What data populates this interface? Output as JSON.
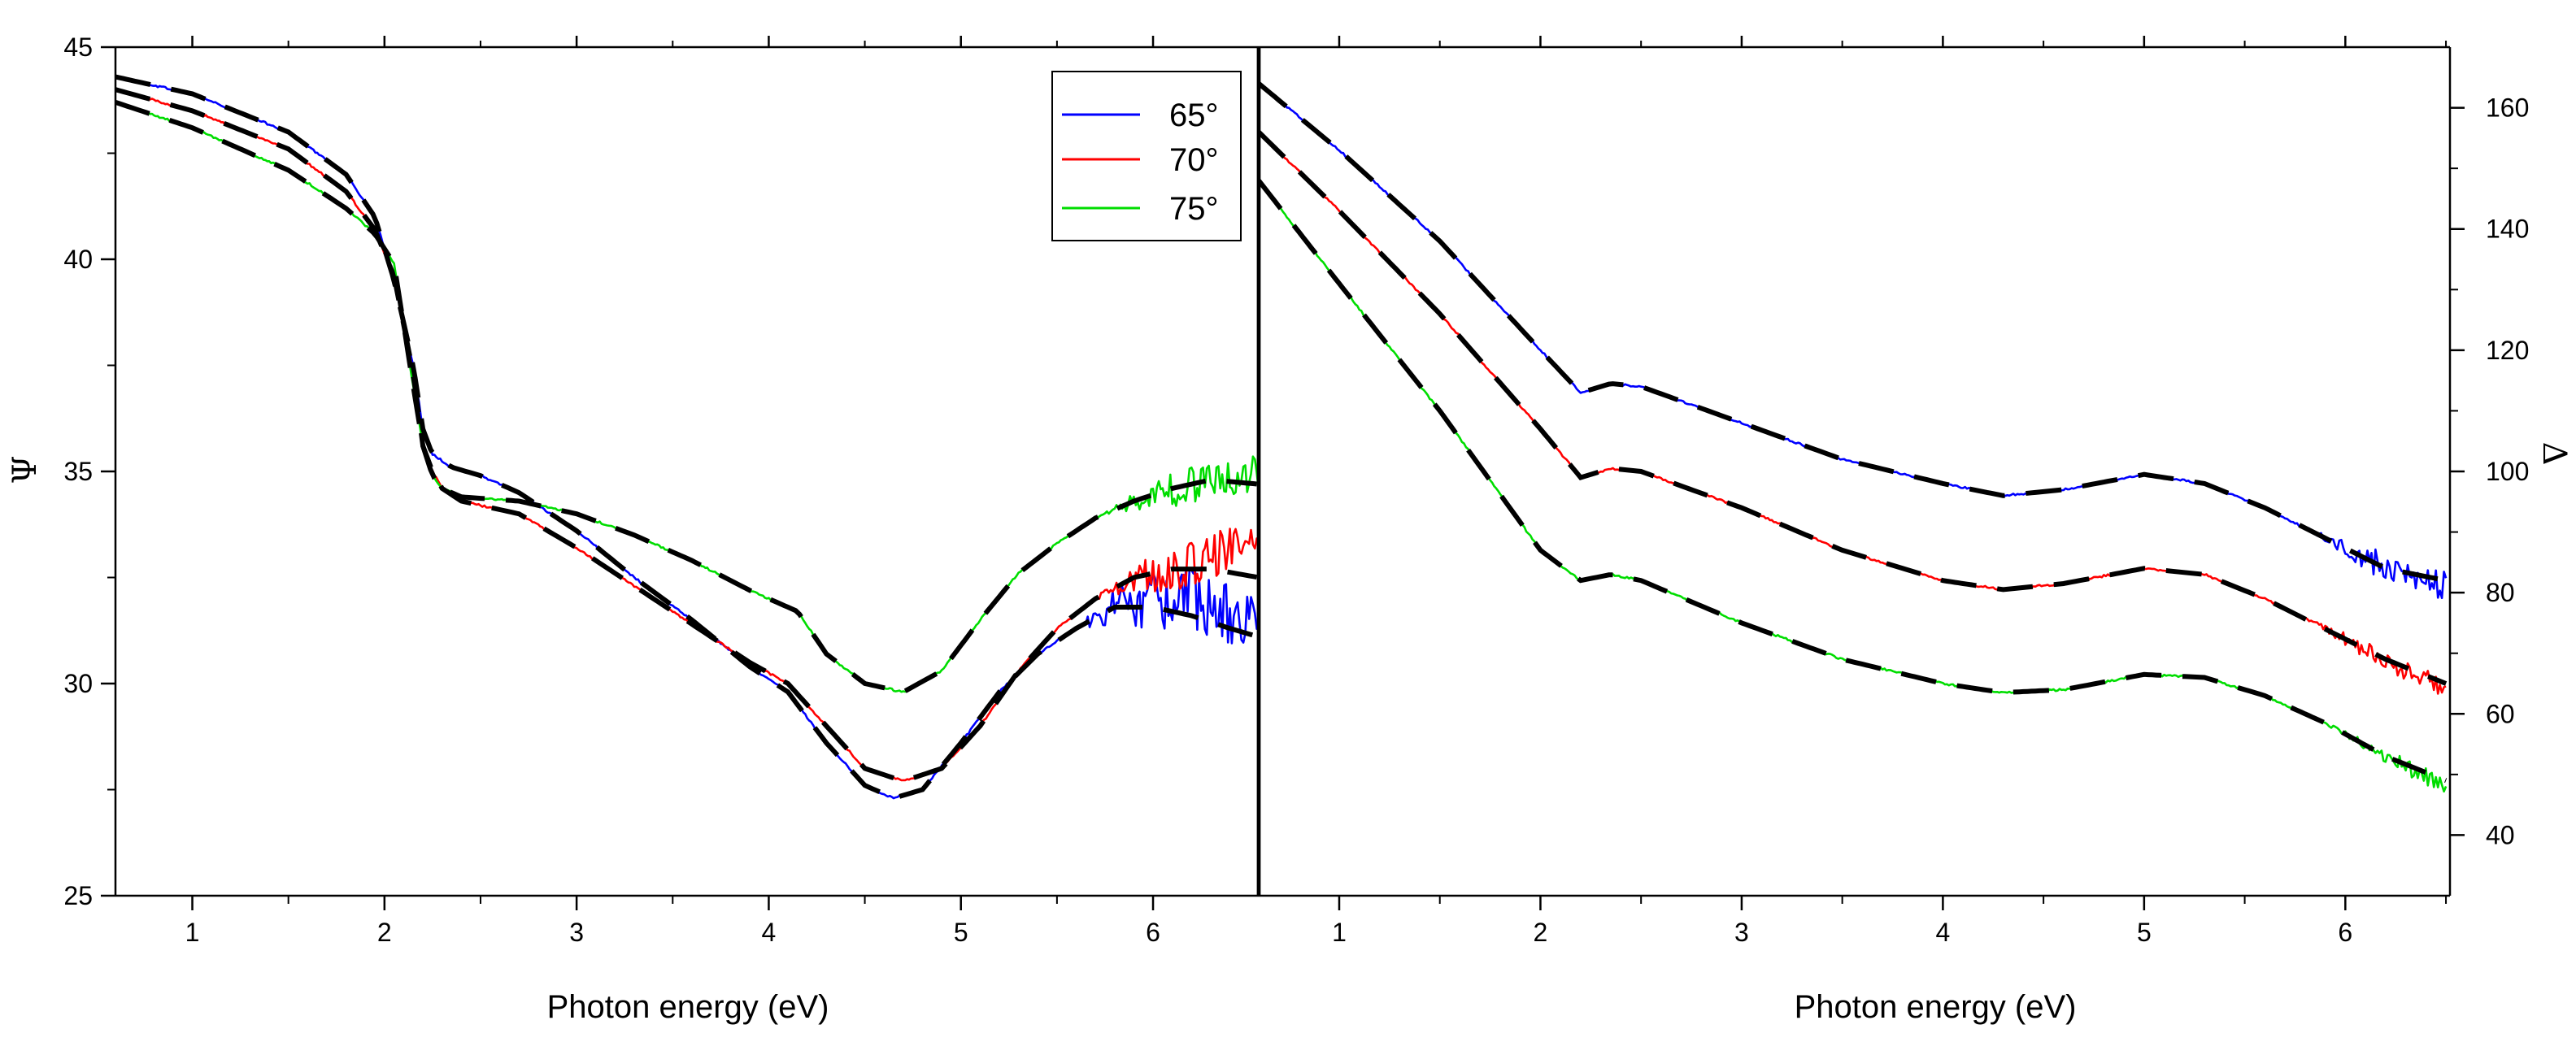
{
  "chart_data": [
    {
      "type": "line",
      "panel": "left",
      "xlabel": "Photon energy (eV)",
      "ylabel": "Ψ",
      "xlim": [
        0.6,
        6.55
      ],
      "ylim": [
        25,
        45
      ],
      "xticks": [
        "1",
        "2",
        "3",
        "4",
        "5",
        "6"
      ],
      "yticks": [
        "25",
        "30",
        "35",
        "40",
        "45"
      ],
      "legend": {
        "position": "top-right",
        "entries": [
          {
            "label": "65°",
            "color": "#0000ff"
          },
          {
            "label": "70°",
            "color": "#ff0000"
          },
          {
            "label": "75°",
            "color": "#00dd00"
          }
        ]
      },
      "series": [
        {
          "name": "65°",
          "color": "#0000ff",
          "style": "measured",
          "noise": 0.7,
          "noise_from": 5.6,
          "x": [
            0.6,
            1.0,
            1.5,
            1.8,
            1.95,
            2.05,
            2.15,
            2.2,
            2.25,
            2.35,
            2.5,
            2.7,
            3.0,
            3.3,
            3.6,
            3.9,
            4.1,
            4.3,
            4.5,
            4.65,
            4.8,
            5.0,
            5.2,
            5.4,
            5.6,
            5.8,
            6.0,
            6.2,
            6.4,
            6.55
          ],
          "y": [
            44.3,
            43.9,
            43.0,
            42.0,
            41.0,
            39.5,
            37.5,
            36.0,
            35.4,
            35.1,
            34.9,
            34.5,
            33.6,
            32.5,
            31.5,
            30.4,
            29.8,
            28.6,
            27.6,
            27.3,
            27.5,
            28.6,
            29.8,
            30.7,
            31.3,
            31.8,
            32.0,
            32.0,
            31.6,
            31.4
          ]
        },
        {
          "name": "70°",
          "color": "#ff0000",
          "style": "measured",
          "noise": 0.5,
          "noise_from": 5.7,
          "x": [
            0.6,
            1.0,
            1.5,
            1.8,
            1.95,
            2.05,
            2.15,
            2.2,
            2.25,
            2.3,
            2.4,
            2.7,
            3.0,
            3.3,
            3.6,
            3.9,
            4.1,
            4.3,
            4.5,
            4.7,
            4.9,
            5.1,
            5.3,
            5.5,
            5.7,
            5.9,
            6.1,
            6.3,
            6.55
          ],
          "y": [
            44.0,
            43.5,
            42.6,
            41.6,
            40.7,
            39.6,
            37.3,
            35.6,
            35.0,
            34.6,
            34.3,
            34.0,
            33.2,
            32.3,
            31.4,
            30.5,
            30.0,
            29.0,
            28.0,
            27.7,
            28.0,
            29.0,
            30.3,
            31.3,
            32.0,
            32.5,
            32.7,
            33.0,
            33.5
          ]
        },
        {
          "name": "75°",
          "color": "#00dd00",
          "style": "measured",
          "noise": 0.45,
          "noise_from": 5.75,
          "x": [
            0.6,
            1.0,
            1.5,
            1.8,
            1.95,
            2.05,
            2.15,
            2.2,
            2.25,
            2.3,
            2.4,
            2.7,
            3.0,
            3.3,
            3.6,
            3.9,
            4.15,
            4.3,
            4.5,
            4.7,
            4.9,
            5.1,
            5.3,
            5.5,
            5.7,
            5.9,
            6.1,
            6.3,
            6.55
          ],
          "y": [
            43.7,
            43.1,
            42.1,
            41.2,
            40.6,
            39.9,
            37.0,
            35.6,
            34.9,
            34.6,
            34.4,
            34.3,
            34.0,
            33.5,
            32.9,
            32.2,
            31.7,
            30.7,
            30.0,
            29.8,
            30.3,
            31.5,
            32.6,
            33.3,
            33.9,
            34.3,
            34.6,
            34.8,
            35.0
          ]
        },
        {
          "name": "fit 65°",
          "color": "#000000",
          "style": "fit",
          "x": [
            0.6,
            1.0,
            1.5,
            1.8,
            1.95,
            2.05,
            2.15,
            2.2,
            2.25,
            2.35,
            2.5,
            2.7,
            3.0,
            3.3,
            3.6,
            3.9,
            4.1,
            4.3,
            4.5,
            4.65,
            4.8,
            5.0,
            5.2,
            5.4,
            5.6,
            5.8,
            6.0,
            6.2,
            6.4,
            6.55
          ],
          "y": [
            44.3,
            43.9,
            43.0,
            42.0,
            41.0,
            39.5,
            37.5,
            36.0,
            35.4,
            35.1,
            34.9,
            34.5,
            33.6,
            32.5,
            31.5,
            30.4,
            29.8,
            28.6,
            27.6,
            27.3,
            27.5,
            28.6,
            29.8,
            30.7,
            31.3,
            31.8,
            31.8,
            31.6,
            31.3,
            31.1
          ]
        },
        {
          "name": "fit 70°",
          "color": "#000000",
          "style": "fit",
          "x": [
            0.6,
            1.0,
            1.5,
            1.8,
            1.95,
            2.05,
            2.15,
            2.2,
            2.25,
            2.3,
            2.4,
            2.7,
            3.0,
            3.3,
            3.6,
            3.9,
            4.1,
            4.3,
            4.5,
            4.7,
            4.9,
            5.1,
            5.3,
            5.5,
            5.7,
            5.9,
            6.1,
            6.3,
            6.55
          ],
          "y": [
            44.0,
            43.5,
            42.6,
            41.6,
            40.7,
            39.6,
            37.3,
            35.6,
            35.0,
            34.6,
            34.3,
            34.0,
            33.2,
            32.3,
            31.4,
            30.5,
            30.0,
            29.0,
            28.0,
            27.7,
            28.0,
            29.0,
            30.3,
            31.3,
            32.0,
            32.5,
            32.7,
            32.7,
            32.5
          ]
        },
        {
          "name": "fit 75°",
          "color": "#000000",
          "style": "fit",
          "x": [
            0.6,
            1.0,
            1.5,
            1.8,
            1.95,
            2.05,
            2.15,
            2.2,
            2.25,
            2.3,
            2.4,
            2.7,
            3.0,
            3.3,
            3.6,
            3.9,
            4.15,
            4.3,
            4.5,
            4.7,
            4.9,
            5.1,
            5.3,
            5.5,
            5.7,
            5.9,
            6.1,
            6.3,
            6.55
          ],
          "y": [
            43.7,
            43.1,
            42.1,
            41.2,
            40.6,
            39.9,
            37.0,
            35.6,
            34.9,
            34.6,
            34.4,
            34.3,
            34.0,
            33.5,
            32.9,
            32.2,
            31.7,
            30.7,
            30.0,
            29.8,
            30.3,
            31.5,
            32.6,
            33.3,
            33.9,
            34.3,
            34.6,
            34.8,
            34.7
          ]
        }
      ]
    },
    {
      "type": "line",
      "panel": "right",
      "xlabel": "Photon energy (eV)",
      "ylabel": "Δ",
      "xlim": [
        0.6,
        6.52
      ],
      "ylim": [
        30,
        170
      ],
      "xticks": [
        "1",
        "2",
        "3",
        "4",
        "5",
        "6"
      ],
      "yticks": [
        "40",
        "60",
        "80",
        "100",
        "120",
        "140",
        "160"
      ],
      "series": [
        {
          "name": "65°",
          "color": "#0000ff",
          "style": "measured",
          "noise": 2.2,
          "noise_from": 5.8,
          "x": [
            0.6,
            1.0,
            1.5,
            2.0,
            2.2,
            2.35,
            2.5,
            3.0,
            3.5,
            4.0,
            4.3,
            4.6,
            5.0,
            5.3,
            5.6,
            5.9,
            6.2,
            6.5
          ],
          "y": [
            164,
            153,
            138,
            120,
            113,
            114.5,
            114,
            108,
            102,
            98,
            96,
            97,
            99.5,
            98,
            94,
            89,
            84,
            81
          ]
        },
        {
          "name": "70°",
          "color": "#ff0000",
          "style": "measured",
          "noise": 1.6,
          "noise_from": 5.8,
          "x": [
            0.6,
            1.0,
            1.5,
            2.0,
            2.2,
            2.35,
            2.5,
            3.0,
            3.5,
            4.0,
            4.3,
            4.6,
            5.0,
            5.3,
            5.6,
            5.9,
            6.2,
            6.5
          ],
          "y": [
            156,
            143,
            126,
            107,
            99,
            100.5,
            100,
            94,
            87,
            82,
            80.5,
            81.5,
            84,
            83,
            79,
            74,
            69,
            64
          ]
        },
        {
          "name": "75°",
          "color": "#00dd00",
          "style": "measured",
          "noise": 1.2,
          "noise_from": 5.9,
          "x": [
            0.6,
            1.0,
            1.5,
            2.0,
            2.2,
            2.35,
            2.5,
            3.0,
            3.5,
            4.0,
            4.3,
            4.6,
            5.0,
            5.3,
            5.6,
            5.9,
            6.2,
            6.5
          ],
          "y": [
            148,
            131,
            110,
            87,
            82,
            83,
            82,
            75,
            69,
            65,
            63.5,
            64,
            66.5,
            66,
            63,
            58.5,
            53,
            48
          ]
        },
        {
          "name": "fit 65°",
          "color": "#000000",
          "style": "fit",
          "x": [
            0.6,
            1.0,
            1.5,
            2.0,
            2.2,
            2.35,
            2.5,
            3.0,
            3.5,
            4.0,
            4.3,
            4.6,
            5.0,
            5.3,
            5.6,
            5.9,
            6.2,
            6.5
          ],
          "y": [
            164,
            153,
            138,
            120,
            113,
            114.5,
            114,
            108,
            102,
            98,
            96,
            97,
            99.5,
            98,
            94,
            89,
            84,
            82
          ]
        },
        {
          "name": "fit 70°",
          "color": "#000000",
          "style": "fit",
          "x": [
            0.6,
            1.0,
            1.5,
            2.0,
            2.2,
            2.35,
            2.5,
            3.0,
            3.5,
            4.0,
            4.3,
            4.6,
            5.0,
            5.3,
            5.6,
            5.9,
            6.2,
            6.5
          ],
          "y": [
            156,
            143,
            126,
            107,
            99,
            100.5,
            100,
            94,
            87,
            82,
            80.5,
            81.5,
            84,
            83,
            79,
            74,
            69,
            65
          ]
        },
        {
          "name": "fit 75°",
          "color": "#000000",
          "style": "fit",
          "x": [
            0.6,
            1.0,
            1.5,
            2.0,
            2.2,
            2.35,
            2.5,
            3.0,
            3.5,
            4.0,
            4.3,
            4.6,
            5.0,
            5.3,
            5.6,
            5.9,
            6.2,
            6.5
          ],
          "y": [
            148,
            131,
            110,
            87,
            82,
            83,
            82,
            75,
            69,
            65,
            63.5,
            64,
            66.5,
            66,
            63,
            58.5,
            53,
            49
          ]
        }
      ]
    }
  ]
}
